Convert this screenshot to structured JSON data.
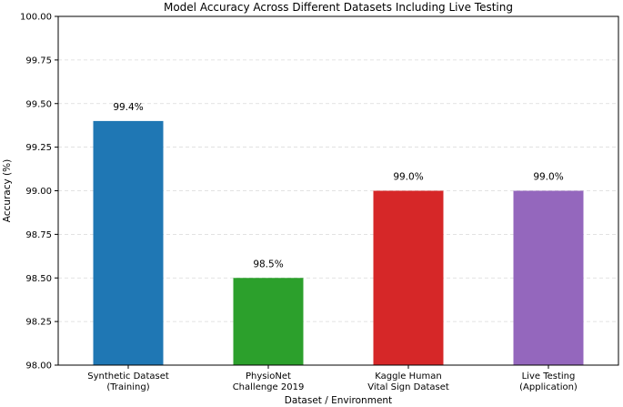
{
  "chart_data": {
    "type": "bar",
    "title": "Model Accuracy Across Different Datasets Including Live Testing",
    "xlabel": "Dataset / Environment",
    "ylabel": "Accuracy (%)",
    "ylim": [
      98.0,
      100.0
    ],
    "yticks": [
      "98.00",
      "98.25",
      "98.50",
      "98.75",
      "99.00",
      "99.25",
      "99.50",
      "99.75",
      "100.00"
    ],
    "ytick_values": [
      98.0,
      98.25,
      98.5,
      98.75,
      99.0,
      99.25,
      99.5,
      99.75,
      100.0
    ],
    "grid": "y-dashed",
    "categories": [
      [
        "Synthetic Dataset",
        "(Training)"
      ],
      [
        "PhysioNet",
        "Challenge 2019"
      ],
      [
        "Kaggle Human",
        "Vital Sign Dataset"
      ],
      [
        "Live Testing",
        "(Application)"
      ]
    ],
    "values": [
      99.4,
      98.5,
      99.0,
      99.0
    ],
    "data_labels": [
      "99.4%",
      "98.5%",
      "99.0%",
      "99.0%"
    ],
    "colors": [
      "#1f77b4",
      "#2ca02c",
      "#d62728",
      "#9467bd"
    ]
  }
}
